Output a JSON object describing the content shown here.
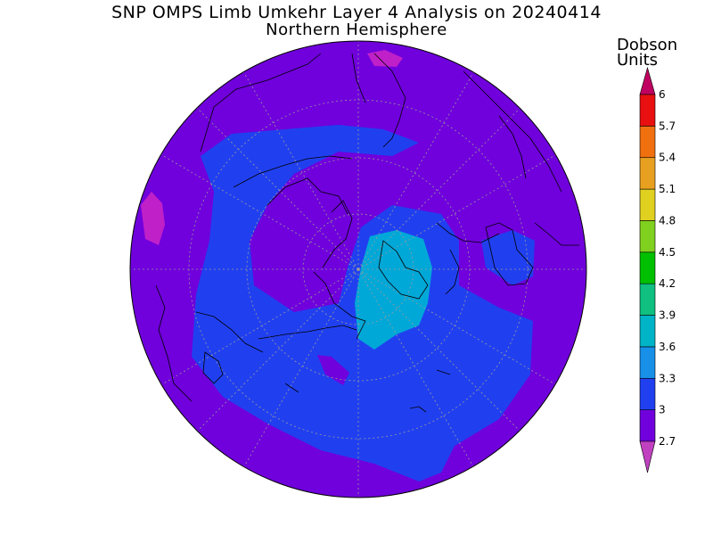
{
  "title": "SNP OMPS Limb Umkehr Layer 4 Analysis on 20240414",
  "subtitle": "Northern Hemisphere",
  "colorbar": {
    "unit_line1": "Dobson",
    "unit_line2": "Units",
    "levels": [
      "2.7",
      "3",
      "3.3",
      "3.6",
      "3.9",
      "4.2",
      "4.5",
      "4.8",
      "5.1",
      "5.4",
      "5.7",
      "6"
    ],
    "colors": [
      "#7000dc",
      "#2040f0",
      "#1890e8",
      "#00b4c8",
      "#10c080",
      "#00c000",
      "#80d020",
      "#e0d020",
      "#e8a020",
      "#f07010",
      "#e81010"
    ],
    "under_color": "#c040c0",
    "over_color": "#c00060"
  },
  "map": {
    "projection": "polar-stereographic-north",
    "field_colors": {
      "low": "#7000dc",
      "mid": "#2040f0",
      "high": "#00a8d8",
      "min": "#c020c8"
    }
  }
}
